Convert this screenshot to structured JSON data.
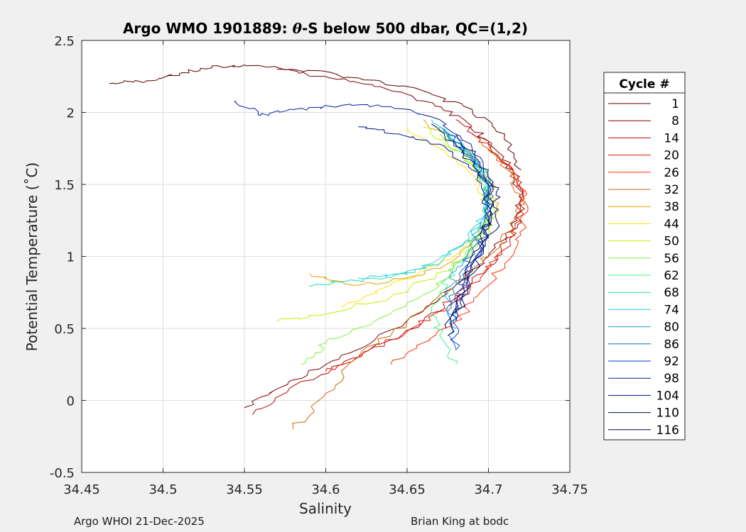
{
  "chart_data": {
    "type": "line",
    "title_prefix": "Argo WMO 1901889: ",
    "title_theta": "θ",
    "title_suffix": "-S below 500 dbar,  QC=(1,2)",
    "xlabel": "Salinity",
    "ylabel": "Potential Temperature (˚C)",
    "xlim": [
      34.45,
      34.75
    ],
    "ylim": [
      -0.5,
      2.5
    ],
    "xticks": [
      34.45,
      34.5,
      34.55,
      34.6,
      34.65,
      34.7,
      34.75
    ],
    "xtick_labels": [
      "34.45",
      "34.5",
      "34.55",
      "34.6",
      "34.65",
      "34.7",
      "34.75"
    ],
    "yticks": [
      -0.5,
      0,
      0.5,
      1,
      1.5,
      2,
      2.5
    ],
    "ytick_labels": [
      "-0.5",
      "0",
      "0.5",
      "1",
      "1.5",
      "2",
      "2.5"
    ],
    "grid": true,
    "legend_title": "Cycle #",
    "legend_position": "right",
    "legend_entries": [
      {
        "label": "1",
        "color": "#5a0000"
      },
      {
        "label": "8",
        "color": "#7a0000"
      },
      {
        "label": "14",
        "color": "#c00000"
      },
      {
        "label": "20",
        "color": "#e01000"
      },
      {
        "label": "26",
        "color": "#ff3000"
      },
      {
        "label": "32",
        "color": "#cc6600"
      },
      {
        "label": "38",
        "color": "#e0a000"
      },
      {
        "label": "44",
        "color": "#ffe000"
      },
      {
        "label": "50",
        "color": "#c0f000"
      },
      {
        "label": "56",
        "color": "#80f040"
      },
      {
        "label": "62",
        "color": "#40f080"
      },
      {
        "label": "68",
        "color": "#20e0b0"
      },
      {
        "label": "74",
        "color": "#20d0e0"
      },
      {
        "label": "80",
        "color": "#20a0e0"
      },
      {
        "label": "86",
        "color": "#1070c0"
      },
      {
        "label": "92",
        "color": "#0040d0"
      },
      {
        "label": "98",
        "color": "#0020a0"
      },
      {
        "label": "104",
        "color": "#001080"
      },
      {
        "label": "110",
        "color": "#000860"
      },
      {
        "label": "116",
        "color": "#000050"
      }
    ],
    "series": [
      {
        "name": "cycle 1",
        "color": "#5a0000",
        "x": [
          34.467,
          34.49,
          34.51,
          34.53,
          34.55,
          34.58,
          34.62,
          34.66,
          34.69,
          34.71,
          34.72
        ],
        "y": [
          2.2,
          2.22,
          2.27,
          2.31,
          2.33,
          2.3,
          2.24,
          2.15,
          2.02,
          1.85,
          1.6
        ]
      },
      {
        "name": "cycle 8",
        "color": "#7a0000",
        "x": [
          34.57,
          34.6,
          34.63,
          34.66,
          34.685,
          34.7,
          34.715,
          34.72,
          34.715,
          34.7,
          34.68,
          34.66,
          34.63,
          34.6,
          34.57,
          34.55
        ],
        "y": [
          2.3,
          2.25,
          2.18,
          2.08,
          1.95,
          1.8,
          1.6,
          1.4,
          1.2,
          1.0,
          0.8,
          0.62,
          0.42,
          0.25,
          0.08,
          -0.05
        ]
      },
      {
        "name": "cycle 14",
        "color": "#c00000",
        "x": [
          34.68,
          34.7,
          34.715,
          34.722,
          34.718,
          34.705,
          34.69,
          34.67,
          34.64,
          34.61,
          34.58,
          34.555
        ],
        "y": [
          1.95,
          1.8,
          1.6,
          1.4,
          1.2,
          1.0,
          0.82,
          0.62,
          0.42,
          0.25,
          0.1,
          -0.1
        ]
      },
      {
        "name": "cycle 20",
        "color": "#e01000",
        "x": [
          34.69,
          34.71,
          34.722,
          34.72,
          34.71,
          34.695,
          34.675,
          34.65,
          34.62,
          34.6
        ],
        "y": [
          1.85,
          1.65,
          1.45,
          1.25,
          1.05,
          0.85,
          0.65,
          0.48,
          0.3,
          0.2
        ]
      },
      {
        "name": "cycle 26",
        "color": "#ff3000",
        "x": [
          34.7,
          34.718,
          34.724,
          34.72,
          34.71,
          34.695,
          34.68,
          34.66,
          34.64
        ],
        "y": [
          1.75,
          1.55,
          1.35,
          1.15,
          0.95,
          0.75,
          0.55,
          0.4,
          0.25
        ]
      },
      {
        "name": "cycle 32",
        "color": "#cc6600",
        "x": [
          34.695,
          34.712,
          34.72,
          34.715,
          34.7,
          34.68,
          34.65,
          34.62,
          34.6,
          34.58
        ],
        "y": [
          1.8,
          1.6,
          1.4,
          1.2,
          1.0,
          0.8,
          0.55,
          0.3,
          0.05,
          -0.2
        ]
      },
      {
        "name": "cycle 38",
        "color": "#e0a000",
        "x": [
          34.66,
          34.685,
          34.7,
          34.705,
          34.695,
          34.675,
          34.65,
          34.62,
          34.59
        ],
        "y": [
          1.95,
          1.75,
          1.55,
          1.35,
          1.15,
          0.95,
          0.85,
          0.8,
          0.88
        ]
      },
      {
        "name": "cycle 44",
        "color": "#ffe000",
        "x": [
          34.65,
          34.675,
          34.695,
          34.7,
          34.69,
          34.67,
          34.64,
          34.61
        ],
        "y": [
          1.9,
          1.7,
          1.5,
          1.3,
          1.1,
          0.95,
          0.8,
          0.65
        ]
      },
      {
        "name": "cycle 50",
        "color": "#c0f000",
        "x": [
          34.66,
          34.685,
          34.7,
          34.705,
          34.695,
          34.675,
          34.64,
          34.6,
          34.57
        ],
        "y": [
          1.9,
          1.7,
          1.5,
          1.3,
          1.1,
          0.9,
          0.72,
          0.6,
          0.55
        ]
      },
      {
        "name": "cycle 56",
        "color": "#80f040",
        "x": [
          34.67,
          34.69,
          34.7,
          34.7,
          34.69,
          34.675,
          34.655,
          34.63,
          34.6,
          34.585
        ],
        "y": [
          1.85,
          1.65,
          1.45,
          1.25,
          1.05,
          0.85,
          0.7,
          0.55,
          0.4,
          0.25
        ]
      },
      {
        "name": "cycle 62",
        "color": "#40f080",
        "x": [
          34.675,
          34.692,
          34.7,
          34.698,
          34.688,
          34.675,
          34.665,
          34.67,
          34.68
        ],
        "y": [
          1.85,
          1.65,
          1.45,
          1.25,
          1.05,
          0.85,
          0.65,
          0.45,
          0.25
        ]
      },
      {
        "name": "cycle 68",
        "color": "#20e0b0",
        "x": [
          34.67,
          34.69,
          34.7,
          34.698,
          34.685,
          34.665,
          34.64,
          34.61,
          34.59
        ],
        "y": [
          1.9,
          1.7,
          1.5,
          1.3,
          1.1,
          0.95,
          0.85,
          0.82,
          0.8
        ]
      },
      {
        "name": "cycle 74",
        "color": "#20d0e0",
        "x": [
          34.665,
          34.685,
          34.7,
          34.7,
          34.69,
          34.67,
          34.645,
          34.62
        ],
        "y": [
          1.95,
          1.75,
          1.55,
          1.35,
          1.15,
          0.95,
          0.88,
          0.85
        ]
      },
      {
        "name": "cycle 80",
        "color": "#20a0e0",
        "x": [
          34.67,
          34.69,
          34.7,
          34.7,
          34.69,
          34.68,
          34.675,
          34.68
        ],
        "y": [
          1.9,
          1.7,
          1.5,
          1.3,
          1.1,
          0.9,
          0.7,
          0.5
        ]
      },
      {
        "name": "cycle 86",
        "color": "#1070c0",
        "x": [
          34.672,
          34.69,
          34.7,
          34.7,
          34.692,
          34.682,
          34.675,
          34.68
        ],
        "y": [
          1.88,
          1.68,
          1.48,
          1.28,
          1.08,
          0.88,
          0.62,
          0.35
        ]
      },
      {
        "name": "cycle 92",
        "color": "#0040d0",
        "x": [
          34.675,
          34.692,
          34.7,
          34.7,
          34.695,
          34.685,
          34.678,
          34.68
        ],
        "y": [
          1.85,
          1.65,
          1.45,
          1.25,
          1.05,
          0.85,
          0.6,
          0.35
        ]
      },
      {
        "name": "cycle 98",
        "color": "#0020a0",
        "x": [
          34.545,
          34.56,
          34.58,
          34.61,
          34.64,
          34.67,
          34.69,
          34.7,
          34.7,
          34.69,
          34.68
        ],
        "y": [
          2.08,
          1.98,
          2.02,
          2.05,
          2.04,
          1.95,
          1.75,
          1.5,
          1.2,
          0.9,
          0.6
        ]
      },
      {
        "name": "cycle 104",
        "color": "#001080",
        "x": [
          34.62,
          34.645,
          34.67,
          34.69,
          34.7,
          34.698,
          34.688,
          34.68
        ],
        "y": [
          1.9,
          1.85,
          1.78,
          1.6,
          1.35,
          1.1,
          0.85,
          0.55
        ]
      },
      {
        "name": "cycle 110",
        "color": "#000860",
        "x": [
          34.68,
          34.695,
          34.705,
          34.705,
          34.695,
          34.685,
          34.675
        ],
        "y": [
          1.85,
          1.65,
          1.45,
          1.25,
          1.0,
          0.75,
          0.45
        ]
      },
      {
        "name": "cycle 116",
        "color": "#000050",
        "x": [
          34.665,
          34.685,
          34.7,
          34.702,
          34.694,
          34.684,
          34.674
        ],
        "y": [
          1.92,
          1.72,
          1.52,
          1.3,
          1.05,
          0.8,
          0.5
        ]
      }
    ]
  },
  "footer": {
    "left": "Argo WHOI 21-Dec-2025",
    "right": "Brian King at bodc"
  }
}
